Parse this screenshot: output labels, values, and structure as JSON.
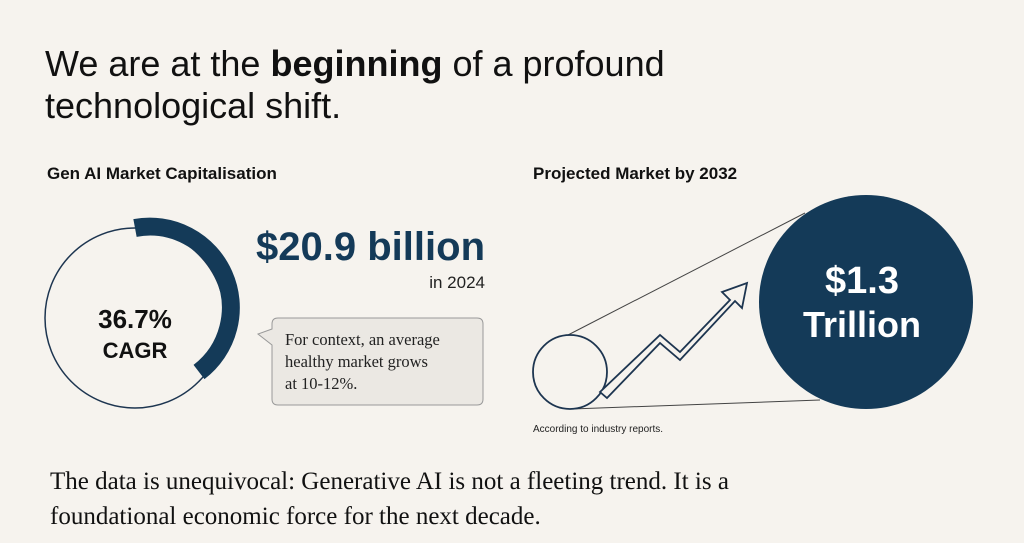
{
  "headline": {
    "part1": "We are at the ",
    "emphasis": "beginning",
    "part2": " of a profound",
    "line2": "technological shift."
  },
  "left": {
    "title": "Gen AI Market Capitalisation",
    "ring_value": "36.7%",
    "ring_label": "CAGR",
    "amount": "$20.9 billion",
    "amount_year": "in 2024",
    "callout": [
      "For context, an average",
      "healthy market grows",
      "at 10-12%."
    ]
  },
  "right": {
    "title": "Projected Market by 2032",
    "amount": "$1.3",
    "unit": "Trillion",
    "note": "According to industry reports."
  },
  "footer": [
    "The data is unequivocal: Generative AI is not a fleeting trend. It is a",
    "foundational economic force for the next decade."
  ]
}
